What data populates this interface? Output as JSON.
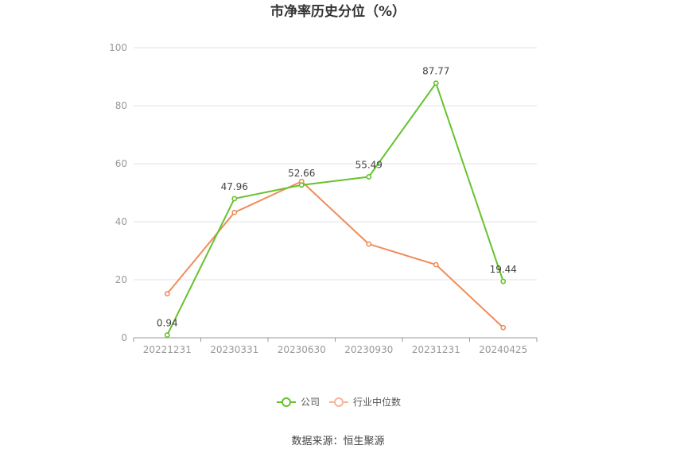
{
  "chart_data": {
    "type": "line",
    "title": "市净率历史分位（%）",
    "xlabel": "",
    "ylabel": "",
    "categories": [
      "20221231",
      "20230331",
      "20230630",
      "20230930",
      "20231231",
      "20240425"
    ],
    "ylim": [
      0,
      100
    ],
    "yticks": [
      0,
      20,
      40,
      60,
      80,
      100
    ],
    "grid": true,
    "legend_position": "bottom",
    "series": [
      {
        "name": "公司",
        "color": "#66c22e",
        "values": [
          0.94,
          47.96,
          52.66,
          55.49,
          87.77,
          19.44
        ],
        "labels": [
          "0.94",
          "47.96",
          "52.66",
          "55.49",
          "87.77",
          "19.44"
        ]
      },
      {
        "name": "行业中位数",
        "color": "#f08c5a",
        "values": [
          15.2,
          43.2,
          53.9,
          32.3,
          25.2,
          3.5
        ]
      }
    ]
  },
  "footer": {
    "source": "数据来源：恒生聚源"
  }
}
